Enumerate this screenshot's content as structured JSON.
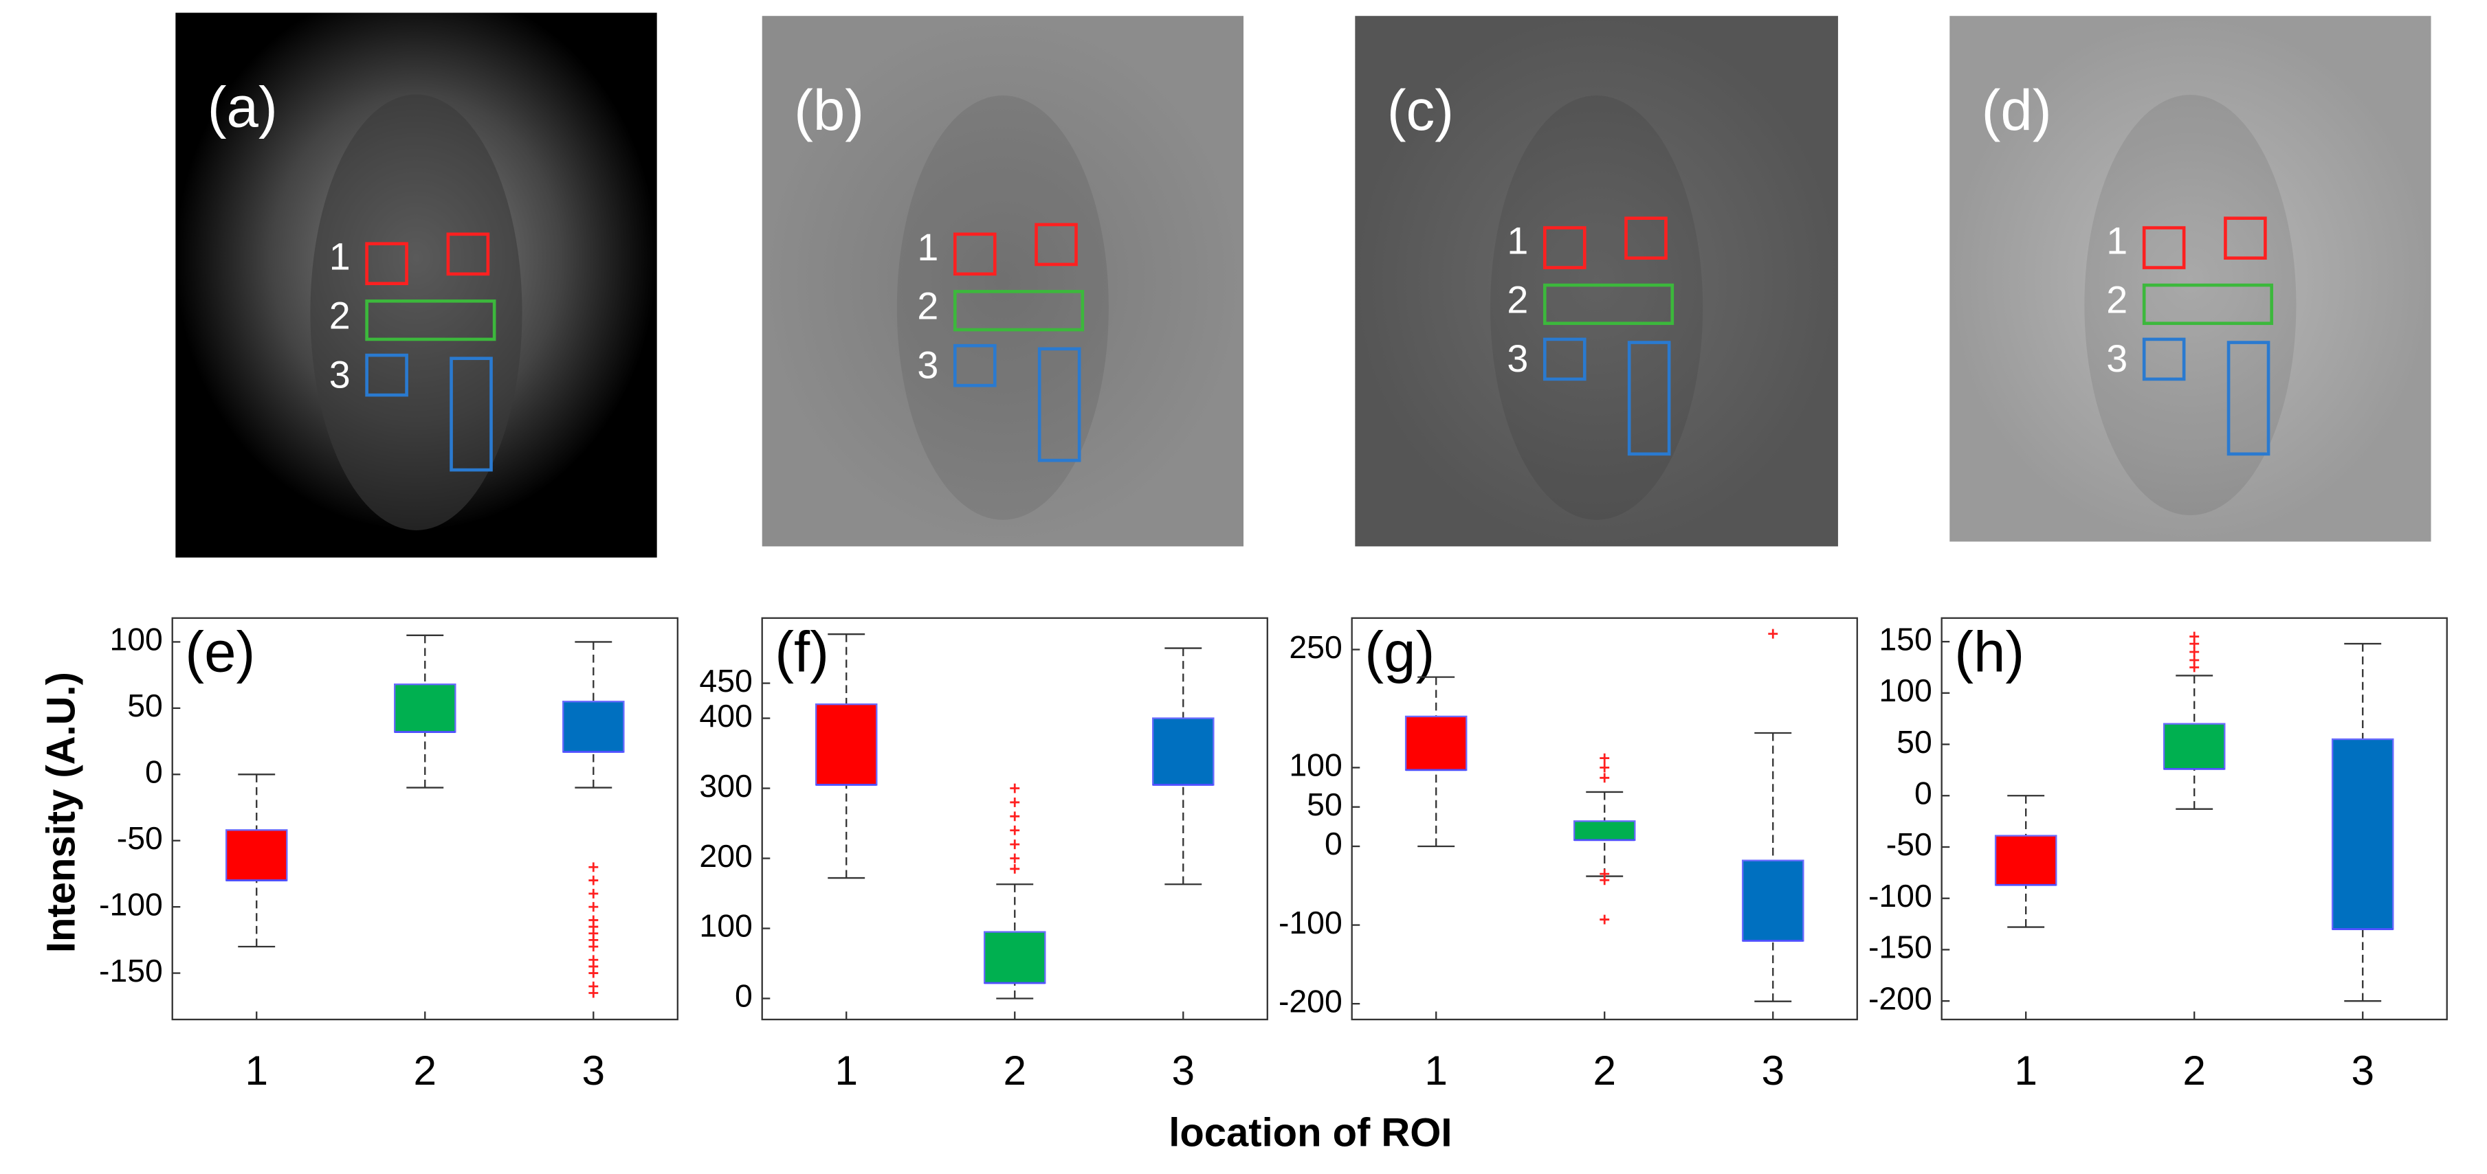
{
  "images": [
    {
      "label": "(a)",
      "roi_labels": [
        "1",
        "2",
        "3"
      ]
    },
    {
      "label": "(b)",
      "roi_labels": [
        "1",
        "2",
        "3"
      ]
    },
    {
      "label": "(c)",
      "roi_labels": [
        "1",
        "2",
        "3"
      ]
    },
    {
      "label": "(d)",
      "roi_labels": [
        "1",
        "2",
        "3"
      ]
    }
  ],
  "xlabel": "location of ROI",
  "chart_data": [
    {
      "type": "box",
      "label": "(e)",
      "ylabel": "Intensity (A.U.)",
      "categories": [
        "1",
        "2",
        "3"
      ],
      "colors": [
        "#ff0000",
        "#00b050",
        "#0070c0"
      ],
      "xlim": [
        0.5,
        3.5
      ],
      "ylim": [
        -185,
        118
      ],
      "yticks": [
        -150,
        -100,
        -50,
        0,
        50,
        100
      ],
      "boxes": [
        {
          "whisker_low": -130,
          "q1": -80,
          "median": -80,
          "q3": -42,
          "whisker_high": 0,
          "outliers": []
        },
        {
          "whisker_low": -10,
          "q1": 32,
          "median": 32,
          "q3": 68,
          "whisker_high": 105,
          "outliers": []
        },
        {
          "whisker_low": -10,
          "q1": 17,
          "median": 17,
          "q3": 55,
          "whisker_high": 100,
          "outliers": [
            -70,
            -80,
            -90,
            -100,
            -110,
            -115,
            -120,
            -125,
            -130,
            -140,
            -145,
            -150,
            -160,
            -165
          ]
        }
      ]
    },
    {
      "type": "box",
      "label": "(f)",
      "categories": [
        "1",
        "2",
        "3"
      ],
      "colors": [
        "#ff0000",
        "#00b050",
        "#0070c0"
      ],
      "xlim": [
        0.5,
        3.5
      ],
      "ylim": [
        -30,
        543
      ],
      "yticks": [
        0,
        100,
        200,
        300,
        400,
        450
      ],
      "boxes": [
        {
          "whisker_low": 172,
          "q1": 305,
          "median": 305,
          "q3": 420,
          "whisker_high": 520,
          "outliers": []
        },
        {
          "whisker_low": 0,
          "q1": 22,
          "median": 22,
          "q3": 95,
          "whisker_high": 163,
          "outliers": [
            185,
            200,
            220,
            240,
            260,
            280,
            300
          ]
        },
        {
          "whisker_low": 163,
          "q1": 305,
          "median": 305,
          "q3": 400,
          "whisker_high": 500,
          "outliers": []
        }
      ]
    },
    {
      "type": "box",
      "label": "(g)",
      "categories": [
        "1",
        "2",
        "3"
      ],
      "colors": [
        "#ff0000",
        "#00b050",
        "#0070c0"
      ],
      "xlim": [
        0.5,
        3.5
      ],
      "ylim": [
        -220,
        290
      ],
      "yticks": [
        -200,
        -100,
        0,
        50,
        100,
        250
      ],
      "boxes": [
        {
          "whisker_low": 0,
          "q1": 97,
          "median": 97,
          "q3": 165,
          "whisker_high": 215,
          "outliers": []
        },
        {
          "whisker_low": -38,
          "q1": 8,
          "median": 8,
          "q3": 32,
          "whisker_high": 69,
          "outliers": [
            112,
            100,
            87,
            -35,
            -43,
            -93
          ]
        },
        {
          "whisker_low": -197,
          "q1": -120,
          "median": -120,
          "q3": -18,
          "whisker_high": 144,
          "outliers": [
            270
          ]
        }
      ]
    },
    {
      "type": "box",
      "label": "(h)",
      "categories": [
        "1",
        "2",
        "3"
      ],
      "colors": [
        "#ff0000",
        "#00b050",
        "#0070c0"
      ],
      "xlim": [
        0.5,
        3.5
      ],
      "ylim": [
        -218,
        173
      ],
      "yticks": [
        -200,
        -150,
        -100,
        -50,
        0,
        50,
        100,
        150
      ],
      "boxes": [
        {
          "whisker_low": -128,
          "q1": -87,
          "median": -87,
          "q3": -39,
          "whisker_high": 0,
          "outliers": []
        },
        {
          "whisker_low": -13,
          "q1": 26,
          "median": 26,
          "q3": 70,
          "whisker_high": 117,
          "outliers": [
            155,
            148,
            140,
            132,
            125
          ]
        },
        {
          "whisker_low": -200,
          "q1": -130,
          "median": -130,
          "q3": 55,
          "whisker_high": 148,
          "outliers": []
        }
      ]
    }
  ]
}
